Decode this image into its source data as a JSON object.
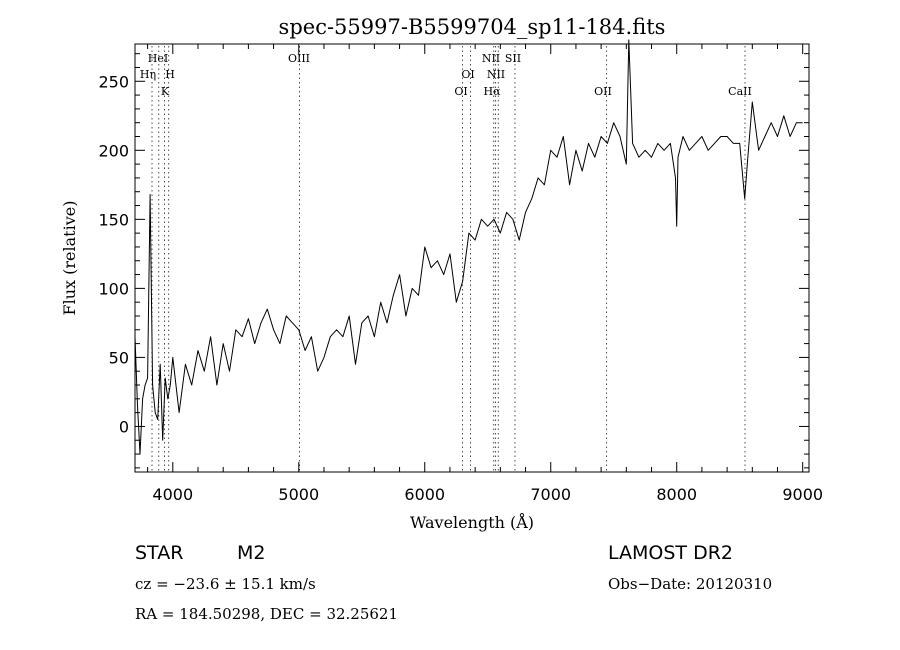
{
  "chart_data": {
    "type": "line",
    "title": "spec-55997-B5599704_sp11-184.fits",
    "xlabel": "Wavelength (Å)",
    "ylabel": "Flux (relative)",
    "xlim": [
      3700,
      9050
    ],
    "ylim": [
      -33,
      277
    ],
    "xticks": [
      4000,
      5000,
      6000,
      7000,
      8000,
      9000
    ],
    "yticks": [
      0,
      50,
      100,
      150,
      200,
      250
    ],
    "grid": false,
    "series": [
      {
        "x": [
          3700,
          3720,
          3740,
          3760,
          3780,
          3800,
          3820,
          3840,
          3860,
          3880,
          3900,
          3920,
          3940,
          3960,
          3980,
          4000,
          4050,
          4100,
          4150,
          4200,
          4250,
          4300,
          4350,
          4400,
          4450,
          4500,
          4550,
          4600,
          4650,
          4700,
          4750,
          4800,
          4850,
          4900,
          4950,
          5000,
          5050,
          5100,
          5150,
          5200,
          5250,
          5300,
          5350,
          5400,
          5450,
          5500,
          5550,
          5600,
          5650,
          5700,
          5750,
          5800,
          5850,
          5900,
          5950,
          6000,
          6050,
          6100,
          6150,
          6200,
          6250,
          6300,
          6350,
          6400,
          6450,
          6500,
          6550,
          6600,
          6650,
          6700,
          6750,
          6800,
          6850,
          6900,
          6950,
          7000,
          7050,
          7100,
          7150,
          7200,
          7250,
          7300,
          7350,
          7400,
          7450,
          7500,
          7550,
          7600,
          7620,
          7650,
          7700,
          7750,
          7800,
          7850,
          7900,
          7950,
          7990,
          8000,
          8010,
          8050,
          8100,
          8150,
          8200,
          8250,
          8300,
          8350,
          8400,
          8450,
          8500,
          8540,
          8560,
          8600,
          8650,
          8700,
          8750,
          8800,
          8850,
          8900,
          8950,
          9000
        ],
        "y": [
          65,
          15,
          -20,
          20,
          30,
          35,
          168,
          30,
          10,
          5,
          45,
          -10,
          35,
          20,
          30,
          50,
          10,
          45,
          30,
          55,
          40,
          65,
          30,
          60,
          40,
          70,
          65,
          78,
          60,
          75,
          85,
          70,
          60,
          80,
          75,
          70,
          55,
          65,
          40,
          50,
          65,
          70,
          65,
          80,
          45,
          75,
          80,
          65,
          90,
          75,
          95,
          110,
          80,
          100,
          95,
          130,
          115,
          120,
          110,
          125,
          90,
          105,
          140,
          135,
          150,
          145,
          150,
          140,
          155,
          150,
          135,
          155,
          165,
          180,
          175,
          200,
          195,
          210,
          175,
          200,
          185,
          205,
          195,
          210,
          205,
          220,
          210,
          190,
          280,
          205,
          195,
          200,
          195,
          205,
          200,
          205,
          180,
          145,
          195,
          210,
          200,
          205,
          210,
          200,
          205,
          210,
          210,
          205,
          205,
          165,
          190,
          235,
          200,
          210,
          220,
          210,
          225,
          210,
          220,
          220
        ]
      }
    ],
    "lines": [
      {
        "wl": 3835,
        "labels": [
          "Hη"
        ]
      },
      {
        "wl": 3889,
        "labels": [
          "HeI"
        ]
      },
      {
        "wl": 3934,
        "labels": [
          "K"
        ]
      },
      {
        "wl": 3968,
        "labels": [
          "H"
        ]
      },
      {
        "wl": 5007,
        "labels": [
          "OIII"
        ]
      },
      {
        "wl": 6300,
        "labels": [
          "OI"
        ]
      },
      {
        "wl": 6364,
        "labels": [
          "OI"
        ]
      },
      {
        "wl": 6548,
        "labels": [
          "NII"
        ]
      },
      {
        "wl": 6563,
        "labels": [
          "Hα"
        ]
      },
      {
        "wl": 6583,
        "labels": [
          "NII"
        ]
      },
      {
        "wl": 6716,
        "labels": [
          "SII"
        ]
      },
      {
        "wl": 7444,
        "labels": [
          "OII"
        ]
      },
      {
        "wl": 8542,
        "labels": [
          "CaII"
        ]
      }
    ]
  },
  "info": {
    "class": "STAR",
    "subclass": "M2",
    "survey": "LAMOST DR2",
    "cz": "cz = −23.6 ± 15.1 km/s",
    "obs_date": "Obs−Date: 20120310",
    "radec": "RA = 184.50298, DEC =  32.25621"
  }
}
